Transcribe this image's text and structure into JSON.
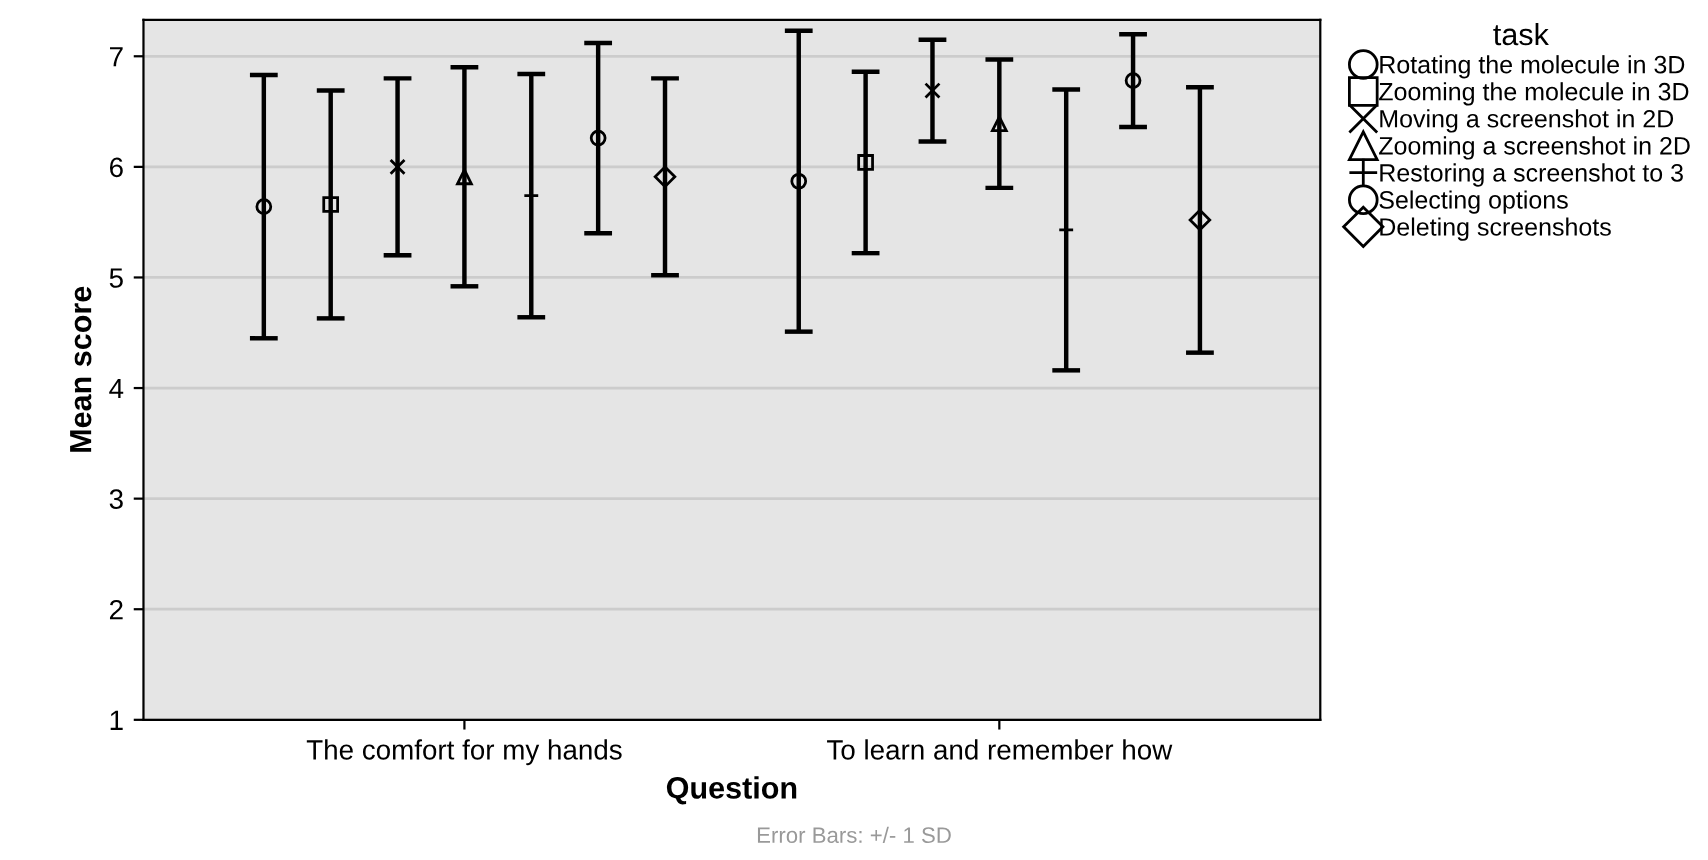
{
  "chart_data": {
    "type": "scatter",
    "xlabel": "Question",
    "ylabel": "Mean score",
    "legend_title": "task",
    "categories": [
      "The comfort for my hands",
      "To learn and remember how"
    ],
    "series": [
      {
        "name": "Rotating the molecule in 3D",
        "color": "#000000",
        "marker": "circle",
        "values": [
          5.64,
          5.87
        ],
        "errors": [
          1.19,
          1.36
        ]
      },
      {
        "name": "Zooming the molecule in 3D",
        "color": "#000000",
        "marker": "square",
        "values": [
          5.66,
          6.04
        ],
        "errors": [
          1.03,
          0.82
        ]
      },
      {
        "name": "Moving a screenshot in 2D",
        "color": "#000000",
        "marker": "cross",
        "values": [
          6.0,
          6.69
        ],
        "errors": [
          0.8,
          0.46
        ]
      },
      {
        "name": "Zooming a screenshot in 2D",
        "color": "#000000",
        "marker": "triangle",
        "values": [
          5.91,
          6.39
        ],
        "errors": [
          0.99,
          0.58
        ]
      },
      {
        "name": "Restoring a screenshot to 3",
        "color": "#000000",
        "marker": "plus",
        "values": [
          5.74,
          5.43
        ],
        "errors": [
          1.1,
          1.27
        ]
      },
      {
        "name": "Selecting options",
        "color": "#000000",
        "marker": "circle",
        "values": [
          6.26,
          6.78
        ],
        "errors": [
          0.86,
          0.42
        ]
      },
      {
        "name": "Deleting screenshots",
        "color": "#000000",
        "marker": "diamond",
        "values": [
          5.91,
          5.52
        ],
        "errors": [
          0.89,
          1.2
        ]
      }
    ],
    "ylim": [
      1,
      7.33
    ],
    "yticks": [
      1,
      2,
      3,
      4,
      5,
      6,
      7
    ],
    "grid": "y",
    "legend": "right",
    "annotations": [
      "Error Bars: +/- 1 SD"
    ]
  }
}
